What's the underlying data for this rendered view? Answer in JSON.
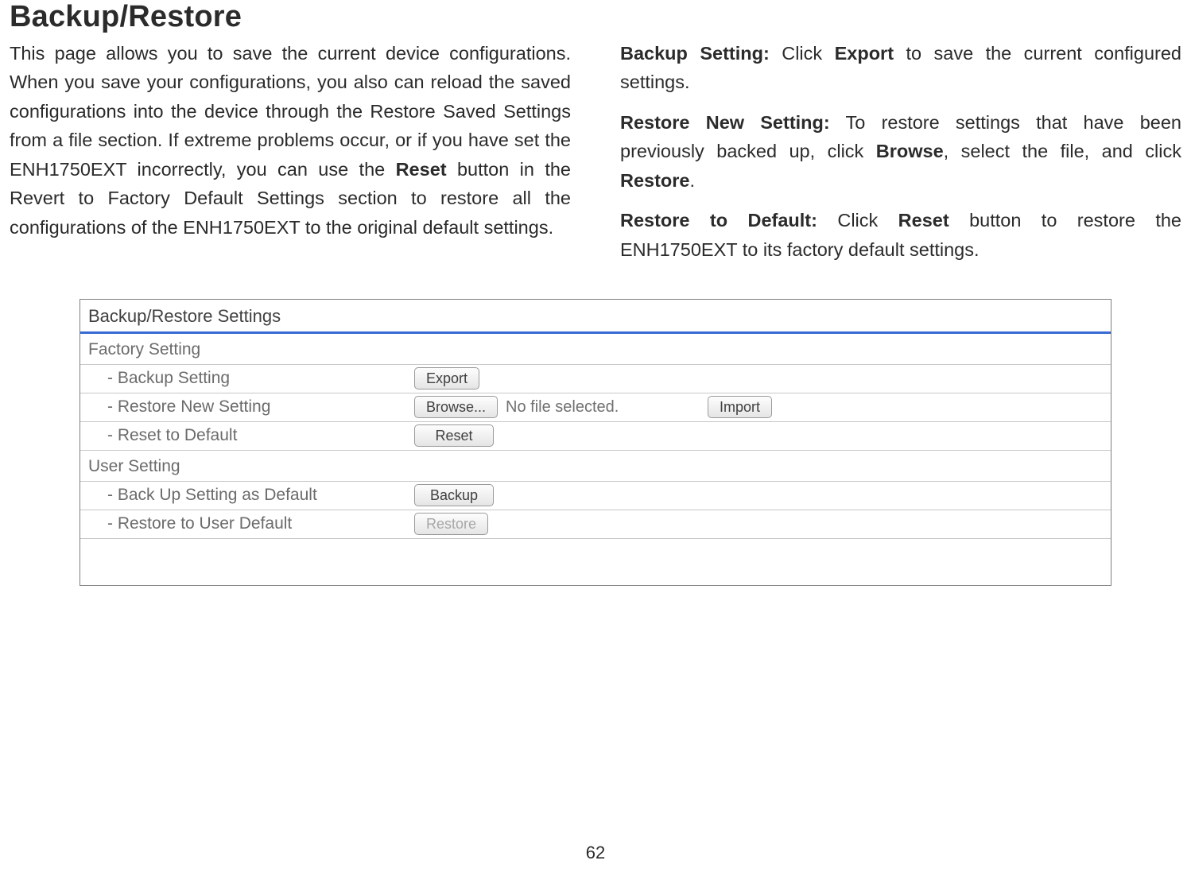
{
  "title": "Backup/Restore",
  "page_number": "62",
  "left_para_html": "This page allows you to save the current device configurations. When you save your configurations, you also can reload the saved configurations into the device through the Restore Saved Settings from a file section. If extreme problems occur, or if you have set the ENH1750EXT incorrectly, you can use the <b>Reset</b> button in the Revert to Factory Default Settings section to restore all the configurations of the ENH1750EXT to the original default settings.",
  "right": {
    "p1": "<b>Backup Setting:</b> Click <b>Export</b> to save the current configured settings.",
    "p2": "<b>Restore New Setting:</b> To restore settings that have been previously backed up, click <b>Browse</b>, select the file, and click <b>Restore</b>.",
    "p3": "<b>Restore to Default:</b> Click <b>Reset</b> button to restore the ENH1750EXT to its factory default settings."
  },
  "panel": {
    "header": "Backup/Restore Settings",
    "factory": {
      "title": "Factory Setting",
      "backup_label": "- Backup Setting",
      "export_btn": "Export",
      "restore_label": "- Restore New Setting",
      "browse_btn": "Browse...",
      "file_status": "No file selected.",
      "import_btn": "Import",
      "reset_label": "- Reset to Default",
      "reset_btn": "Reset"
    },
    "user": {
      "title": "User Setting",
      "backup_label": "- Back Up Setting as Default",
      "backup_btn": "Backup",
      "restore_label": "- Restore to User Default",
      "restore_btn": "Restore"
    }
  }
}
